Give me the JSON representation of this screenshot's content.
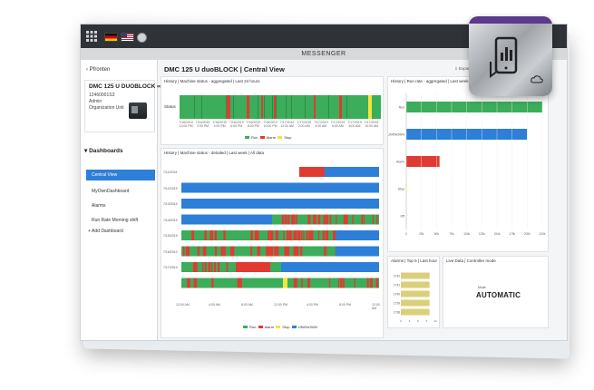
{
  "app": {
    "messenger": "MESSENGER"
  },
  "sidebar": {
    "back_label": "Pfronten",
    "machine_name": "DMC 125 U DUOBLOCK",
    "machine_id": "12460001S3",
    "role": "Admin",
    "unit": "Organization Unit",
    "section": "Dashboards",
    "items": [
      {
        "label": "Central View",
        "active": true
      },
      {
        "label": "MyOwnDashboard",
        "active": false
      },
      {
        "label": "Alarms",
        "active": false
      },
      {
        "label": "Run Rate Morning shift",
        "active": false
      }
    ],
    "add_label": "+ Add Dashboard"
  },
  "main": {
    "title": "DMC 125 U duoBLOCK | Central View",
    "export": "Export",
    "edit": "Edit"
  },
  "panels": {
    "status24": {
      "title": "History | Machine status - aggregated | Last 24 hours",
      "row_label": "Status",
      "ticks": [
        "7/16/2019 12:00 PM",
        "7/16/2019 2:00 PM",
        "7/16/2019 4:00 PM",
        "7/16/2019 6:00 PM",
        "7/16/2019 8:00 PM",
        "7/16/2019 10:00 PM",
        "7/17/2019 12:00 AM",
        "7/17/2019 2:00 AM",
        "7/17/2019 4:00 AM",
        "7/17/2019 6:00 AM",
        "7/17/2019 8:00 AM",
        "7/17/2019 10:00 AM"
      ],
      "legend": [
        "Run",
        "Alarm",
        "Stop"
      ]
    },
    "detailed": {
      "title": "History | Machine status - detailed | Last week | All data",
      "rows": [
        "7/11/2019",
        "7/12/2019",
        "7/13/2019",
        "7/14/2019",
        "7/15/2019",
        "7/16/2019",
        "7/17/2019"
      ],
      "ticks": [
        "12:00 AM",
        "4:00 AM",
        "8:00 AM",
        "12:00 PM",
        "4:00 PM",
        "8:00 PM",
        "12:00 AM"
      ],
      "legend": [
        "Run",
        "Alarm",
        "Stop",
        "UNKNOWN"
      ]
    },
    "runrate": {
      "title": "History | Run rate - aggregated | Last week | All data",
      "categories": [
        "Run",
        "UNKNOWN",
        "Alarm",
        "Stop",
        "Off"
      ],
      "ticks": [
        "0",
        "25k",
        "50k",
        "75k",
        "100k",
        "125k",
        "150k",
        "175k",
        "200k",
        "225k"
      ]
    },
    "alarms": {
      "title": "Alarms | Top 5 | Last hour",
      "rows": [
        "1742",
        "1741",
        "1740",
        "1739",
        "1738"
      ],
      "ticks": [
        "0",
        "3",
        "6",
        "9",
        "12"
      ]
    },
    "live": {
      "title": "Live Data | Controller mode",
      "label": "Mode",
      "value": "AUTOMATIC"
    }
  },
  "colors": {
    "run": "#3cad5a",
    "alarm": "#e03b33",
    "stop": "#f3e53b",
    "unknown": "#2d7fd8",
    "accent": "#5c3a8c"
  },
  "icons": [
    "grid-icon",
    "germany-flag-icon",
    "usa-flag-icon",
    "settings-icon",
    "back-chevron-icon",
    "link-icon",
    "export-icon",
    "edit-icon",
    "tablet-chart-icon",
    "cloud-icon"
  ],
  "chart_data": [
    {
      "type": "bar",
      "title": "History | Run rate - aggregated | Last week | All data",
      "categories": [
        "Run",
        "UNKNOWN",
        "Alarm",
        "Stop",
        "Off"
      ],
      "values": [
        225000,
        200000,
        55000,
        1000,
        0
      ],
      "xlim": [
        0,
        225000
      ]
    },
    {
      "type": "bar",
      "title": "Alarms | Top 5 | Last hour",
      "categories": [
        "1742",
        "1741",
        "1740",
        "1739",
        "1738"
      ],
      "values": [
        10,
        10,
        10,
        10,
        10
      ],
      "xlim": [
        0,
        12
      ]
    }
  ]
}
